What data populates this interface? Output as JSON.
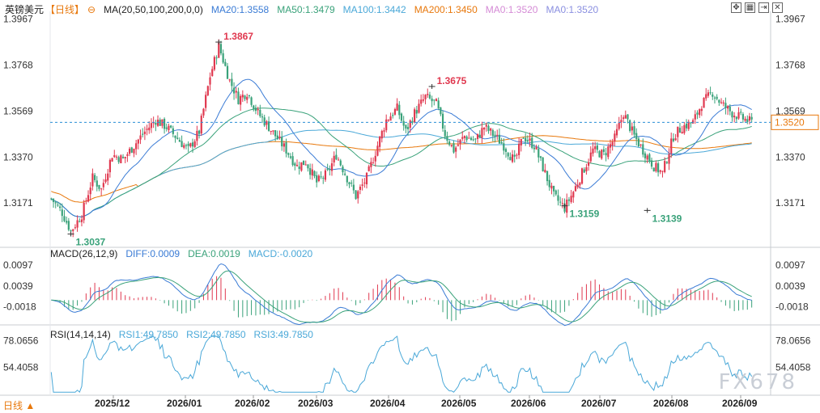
{
  "header": {
    "symbol": "英镑美元",
    "period": "【日线】",
    "ma_label": "MA(20,50,100,200,0,0)",
    "ma20": "MA20:1.3558",
    "ma50": "MA50:1.3479",
    "ma100": "MA100:1.3442",
    "ma200": "MA200:1.3450",
    "ma0a": "MA0:1.3520",
    "ma0b": "MA0:1.3520"
  },
  "macd_header": {
    "label": "MACD(26,12,9)",
    "diff": "DIFF:0.0009",
    "dea": "DEA:0.0019",
    "macd": "MACD:-0.0020"
  },
  "rsi_header": {
    "label": "RSI(14,14,14)",
    "rsi1": "RSI1:49.7850",
    "rsi2": "RSI2:49.7850",
    "rsi3": "RSI3:49.7850"
  },
  "footer": {
    "period_tab": "日线 ▲",
    "watermark": "FX678"
  },
  "colors": {
    "up": "#e0384f",
    "down": "#3aa27a",
    "ma20": "#3a7bd5",
    "ma50": "#3aa27a",
    "ma100": "#4aa8d8",
    "ma200": "#e8780c",
    "price_line": "#2a8fd6",
    "diff": "#3a7bd5",
    "dea": "#3aa27a",
    "rsi": "#4aa8d8"
  },
  "chart_data": [
    {
      "type": "candlestick",
      "title": "英镑美元 日线",
      "y_ticks": [
        "1.3967",
        "1.3768",
        "1.3569",
        "1.3370",
        "1.3171"
      ],
      "ylim": [
        1.299,
        1.4
      ],
      "x_ticks": [
        "2025/12",
        "2026/01",
        "2026/02",
        "2026/03",
        "2026/04",
        "2026/05",
        "2026/06",
        "2026/07",
        "2026/08",
        "2026/09"
      ],
      "current_price": "1.3520",
      "annotations": [
        {
          "label": "1.3867",
          "value": 1.3867,
          "kind": "high"
        },
        {
          "label": "1.3037",
          "value": 1.3037,
          "kind": "low"
        },
        {
          "label": "1.3159",
          "value": 1.3159,
          "kind": "low"
        },
        {
          "label": "1.3139",
          "value": 1.3139,
          "kind": "low"
        },
        {
          "label": "1.3675",
          "value": 1.3675,
          "kind": "high"
        }
      ],
      "close_path": [
        [
          0,
          1.319
        ],
        [
          5,
          1.313
        ],
        [
          9,
          1.305
        ],
        [
          14,
          1.312
        ],
        [
          19,
          1.328
        ],
        [
          23,
          1.323
        ],
        [
          28,
          1.338
        ],
        [
          33,
          1.336
        ],
        [
          38,
          1.342
        ],
        [
          43,
          1.348
        ],
        [
          48,
          1.353
        ],
        [
          53,
          1.35
        ],
        [
          58,
          1.345
        ],
        [
          63,
          1.34
        ],
        [
          68,
          1.348
        ],
        [
          73,
          1.372
        ],
        [
          77,
          1.385
        ],
        [
          82,
          1.37
        ],
        [
          86,
          1.362
        ],
        [
          90,
          1.365
        ],
        [
          95,
          1.356
        ],
        [
          100,
          1.35
        ],
        [
          104,
          1.345
        ],
        [
          108,
          1.34
        ],
        [
          113,
          1.333
        ],
        [
          117,
          1.335
        ],
        [
          122,
          1.326
        ],
        [
          127,
          1.33
        ],
        [
          131,
          1.338
        ],
        [
          135,
          1.33
        ],
        [
          140,
          1.32
        ],
        [
          145,
          1.328
        ],
        [
          150,
          1.342
        ],
        [
          154,
          1.353
        ],
        [
          159,
          1.358
        ],
        [
          163,
          1.348
        ],
        [
          167,
          1.356
        ],
        [
          172,
          1.363
        ],
        [
          177,
          1.36
        ],
        [
          181,
          1.347
        ],
        [
          185,
          1.34
        ],
        [
          190,
          1.346
        ],
        [
          195,
          1.344
        ],
        [
          199,
          1.35
        ],
        [
          204,
          1.346
        ],
        [
          208,
          1.342
        ],
        [
          213,
          1.335
        ],
        [
          217,
          1.346
        ],
        [
          222,
          1.342
        ],
        [
          227,
          1.33
        ],
        [
          231,
          1.32
        ],
        [
          236,
          1.315
        ],
        [
          240,
          1.322
        ],
        [
          245,
          1.332
        ],
        [
          249,
          1.34
        ],
        [
          254,
          1.338
        ],
        [
          259,
          1.345
        ],
        [
          263,
          1.356
        ],
        [
          268,
          1.346
        ],
        [
          272,
          1.34
        ],
        [
          277,
          1.333
        ],
        [
          281,
          1.33
        ],
        [
          286,
          1.346
        ],
        [
          290,
          1.35
        ],
        [
          295,
          1.352
        ],
        [
          299,
          1.36
        ],
        [
          304,
          1.365
        ],
        [
          308,
          1.36
        ],
        [
          313,
          1.356
        ],
        [
          317,
          1.354
        ],
        [
          322,
          1.352
        ]
      ]
    },
    {
      "type": "macd",
      "y_ticks": [
        "0.0097",
        "0.0039",
        "-0.0018"
      ],
      "ylim": [
        -0.006,
        0.012
      ],
      "diff": "DIFF:0.0009",
      "dea": "DEA:0.0019",
      "macd": "MACD:-0.0020"
    },
    {
      "type": "rsi",
      "y_ticks": [
        "78.0656",
        "54.4058"
      ],
      "ylim": [
        30,
        85
      ],
      "rsi1": "RSI1:49.7850"
    }
  ]
}
